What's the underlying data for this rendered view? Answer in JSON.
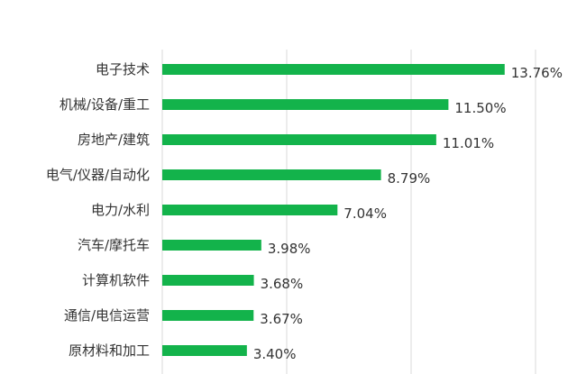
{
  "chart_data": {
    "type": "bar",
    "orientation": "horizontal",
    "categories": [
      "电子技术",
      "机械/设备/重工",
      "房地产/建筑",
      "电气/仪器/自动化",
      "电力/水利",
      "汽车/摩托车",
      "计算机软件",
      "通信/电信运营",
      "原材料和加工"
    ],
    "values": [
      13.76,
      11.5,
      11.01,
      8.79,
      7.04,
      3.98,
      3.68,
      3.67,
      3.4
    ],
    "value_labels": [
      "13.76%",
      "11.50%",
      "11.01%",
      "8.79%",
      "7.04%",
      "3.98%",
      "3.68%",
      "3.67%",
      "3.40%"
    ],
    "xlim": [
      0,
      15
    ],
    "x_gridlines": [
      0,
      5,
      10,
      15
    ],
    "grid": true,
    "bar_color": "#13B34B",
    "grid_color": "#D9D9D9"
  }
}
